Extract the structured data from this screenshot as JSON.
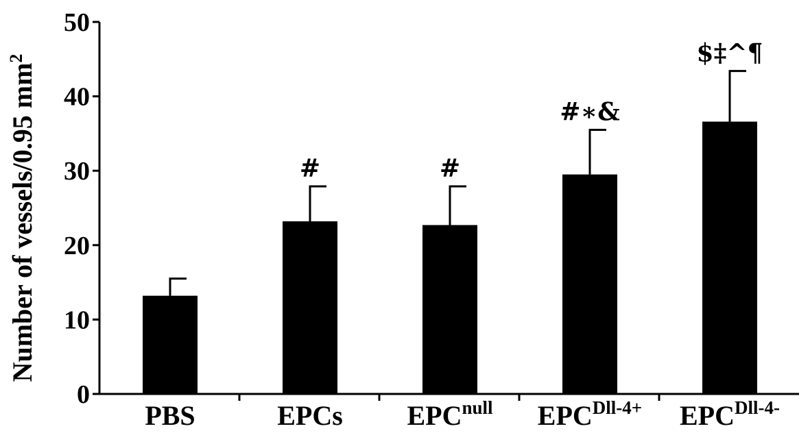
{
  "chart_data": {
    "type": "bar",
    "title": "",
    "ylabel": "Number of vessels/0.95 mm",
    "ylabel_sup": "2",
    "xlabel": "",
    "ylim": [
      0,
      50
    ],
    "yticks": [
      "0",
      "10",
      "20",
      "30",
      "40",
      "50"
    ],
    "categories": [
      {
        "base": "PBS",
        "sup": ""
      },
      {
        "base": "EPCs",
        "sup": ""
      },
      {
        "base": "EPC",
        "sup": "null"
      },
      {
        "base": "EPC",
        "sup": "Dll-4+"
      },
      {
        "base": "EPC",
        "sup": "Dll-4-"
      }
    ],
    "values": [
      13.2,
      23.2,
      22.7,
      29.5,
      36.6
    ],
    "errors": [
      2.3,
      4.7,
      5.2,
      6.0,
      6.8
    ],
    "annotations": [
      "",
      "#",
      "#",
      "#∗&",
      "$‡^¶"
    ],
    "bar_color": "#000000",
    "grid": false
  }
}
